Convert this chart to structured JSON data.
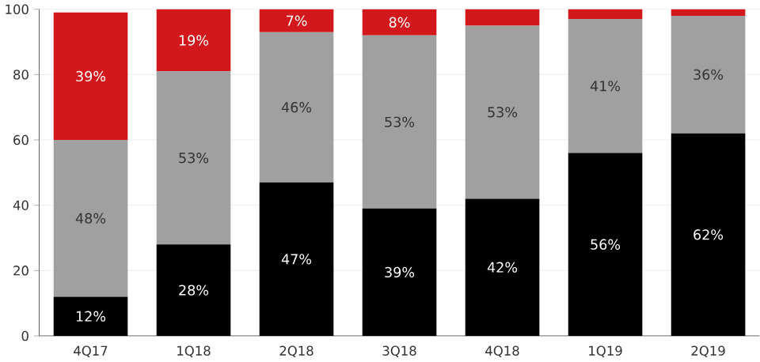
{
  "chart_data": {
    "type": "bar",
    "stacked": true,
    "categories": [
      "4Q17",
      "1Q18",
      "2Q18",
      "3Q18",
      "4Q18",
      "1Q19",
      "2Q19"
    ],
    "series": [
      {
        "color": "#000000",
        "values": [
          12,
          28,
          47,
          39,
          42,
          56,
          62
        ],
        "value_labels": [
          "12%",
          "28%",
          "47%",
          "39%",
          "42%",
          "56%",
          "62%"
        ]
      },
      {
        "color": "#a0a0a0",
        "values": [
          48,
          53,
          46,
          53,
          53,
          41,
          36
        ],
        "value_labels": [
          "48%",
          "53%",
          "46%",
          "53%",
          "53%",
          "41%",
          "36%"
        ]
      },
      {
        "color": "#d2181c",
        "values": [
          39,
          19,
          7,
          8,
          5,
          3,
          2
        ],
        "value_labels": [
          "39%",
          "19%",
          "7%",
          "8%",
          null,
          null,
          null
        ]
      }
    ],
    "ylim": [
      0,
      100
    ],
    "yticks": [
      0,
      20,
      40,
      60,
      80,
      100
    ],
    "grid": "y"
  }
}
